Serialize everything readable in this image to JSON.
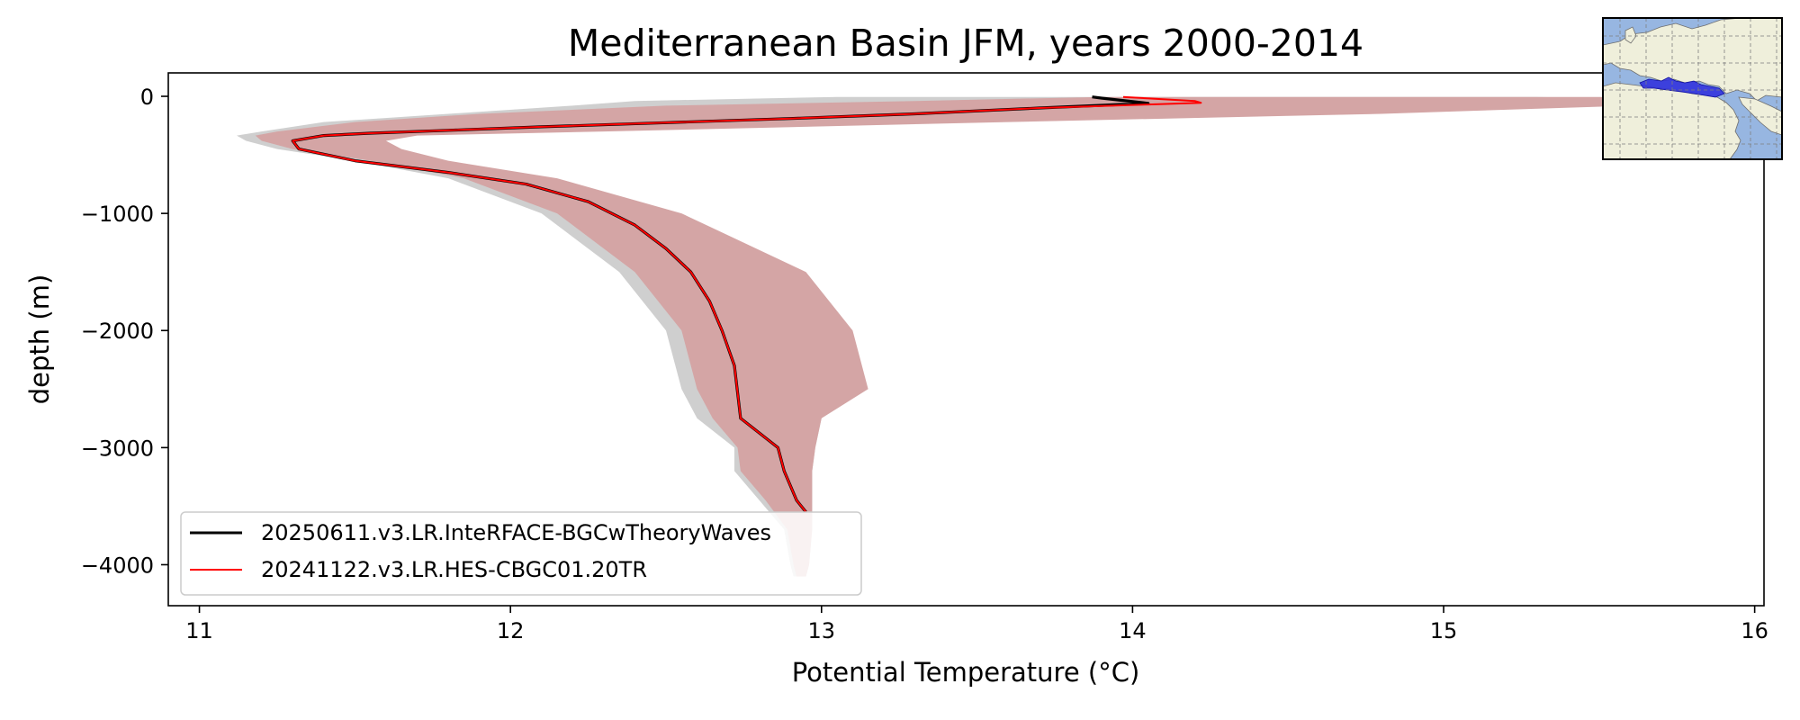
{
  "chart_data": {
    "type": "line",
    "title": "Mediterranean Basin JFM, years 2000-2014",
    "xlabel": "Potential Temperature (°C)",
    "ylabel": "depth (m)",
    "xlim": [
      10.9,
      16.03
    ],
    "ylim": [
      -4350,
      200
    ],
    "xticks": [
      11,
      12,
      13,
      14,
      15,
      16
    ],
    "yticks": [
      0,
      -1000,
      -2000,
      -3000,
      -4000
    ],
    "xtick_labels": [
      "11",
      "12",
      "13",
      "14",
      "15",
      "16"
    ],
    "ytick_labels": [
      "0",
      "−1000",
      "−2000",
      "−3000",
      "−4000"
    ],
    "grid": false,
    "legend_position": "lower-left",
    "series": [
      {
        "name": "20250611.v3.LR.InteRFACE-BGCwTheoryWaves",
        "color": "#000000",
        "x": [
          13.87,
          13.9,
          14.05,
          13.7,
          13.3,
          12.9,
          12.5,
          12.1,
          11.8,
          11.55,
          11.4,
          11.3,
          11.32,
          11.5,
          11.8,
          12.05,
          12.25,
          12.4,
          12.5,
          12.58,
          12.64,
          12.68,
          12.72,
          12.74,
          12.86,
          12.88,
          12.92,
          12.95
        ],
        "y": [
          -5,
          -15,
          -60,
          -100,
          -150,
          -190,
          -225,
          -260,
          -290,
          -315,
          -335,
          -380,
          -450,
          -550,
          -650,
          -750,
          -900,
          -1100,
          -1300,
          -1500,
          -1750,
          -2000,
          -2300,
          -2750,
          -3000,
          -3200,
          -3450,
          -3550
        ]
      },
      {
        "name": "20241122.v3.LR.HES-CBGC01.20TR",
        "color": "#ff0000",
        "x": [
          13.97,
          14.2,
          14.22,
          14.05,
          13.7,
          13.3,
          12.9,
          12.5,
          12.1,
          11.8,
          11.55,
          11.4,
          11.3,
          11.32,
          11.5,
          11.8,
          12.05,
          12.25,
          12.4,
          12.5,
          12.58,
          12.64,
          12.68,
          12.72,
          12.74,
          12.86,
          12.88,
          12.92,
          12.95
        ],
        "y": [
          -5,
          -40,
          -55,
          -70,
          -100,
          -150,
          -190,
          -225,
          -260,
          -290,
          -315,
          -335,
          -380,
          -450,
          -550,
          -650,
          -750,
          -900,
          -1100,
          -1300,
          -1500,
          -1750,
          -2000,
          -2300,
          -2750,
          -3000,
          -3200,
          -3450,
          -3550
        ]
      }
    ],
    "bands": [
      {
        "color": "#cfcfcf",
        "y": [
          -5,
          -40,
          -80,
          -150,
          -220,
          -300,
          -335,
          -380,
          -450,
          -550,
          -700,
          -1000,
          -1500,
          -2000,
          -2500,
          -2750,
          -3000,
          -3200,
          -3450,
          -3700,
          -4000,
          -4100
        ],
        "lower": [
          13.05,
          12.4,
          12.2,
          11.8,
          11.4,
          11.2,
          11.12,
          11.15,
          11.25,
          11.5,
          11.8,
          12.1,
          12.35,
          12.5,
          12.55,
          12.6,
          12.72,
          12.72,
          12.8,
          12.88,
          12.9,
          12.91
        ],
        "upper": [
          15.3,
          15.95,
          15.4,
          14.6,
          13.5,
          12.2,
          11.65,
          11.55,
          11.6,
          11.75,
          12.1,
          12.5,
          12.9,
          13.05,
          13.1,
          13.0,
          12.98,
          12.97,
          12.97,
          12.97,
          12.96,
          12.95
        ]
      },
      {
        "color": "#d4a5a5",
        "y": [
          -5,
          -40,
          -80,
          -150,
          -220,
          -300,
          -335,
          -380,
          -450,
          -550,
          -700,
          -1000,
          -1500,
          -2000,
          -2500,
          -2750,
          -3000,
          -3200,
          -3450,
          -3700,
          -4000,
          -4100
        ],
        "lower": [
          13.9,
          13.3,
          12.5,
          11.9,
          11.5,
          11.25,
          11.18,
          11.2,
          11.3,
          11.55,
          11.85,
          12.15,
          12.4,
          12.55,
          12.6,
          12.65,
          12.73,
          12.74,
          12.82,
          12.89,
          12.91,
          12.92
        ],
        "upper": [
          15.5,
          16.03,
          15.6,
          14.8,
          13.6,
          12.3,
          11.7,
          11.6,
          11.65,
          11.8,
          12.15,
          12.55,
          12.95,
          13.1,
          13.15,
          13.0,
          12.98,
          12.97,
          12.97,
          12.97,
          12.96,
          12.95
        ]
      }
    ]
  },
  "inset_map": {
    "ocean_color": "#97b6e1",
    "land_color": "#efefdb",
    "region_color": "#2b2bdc"
  }
}
